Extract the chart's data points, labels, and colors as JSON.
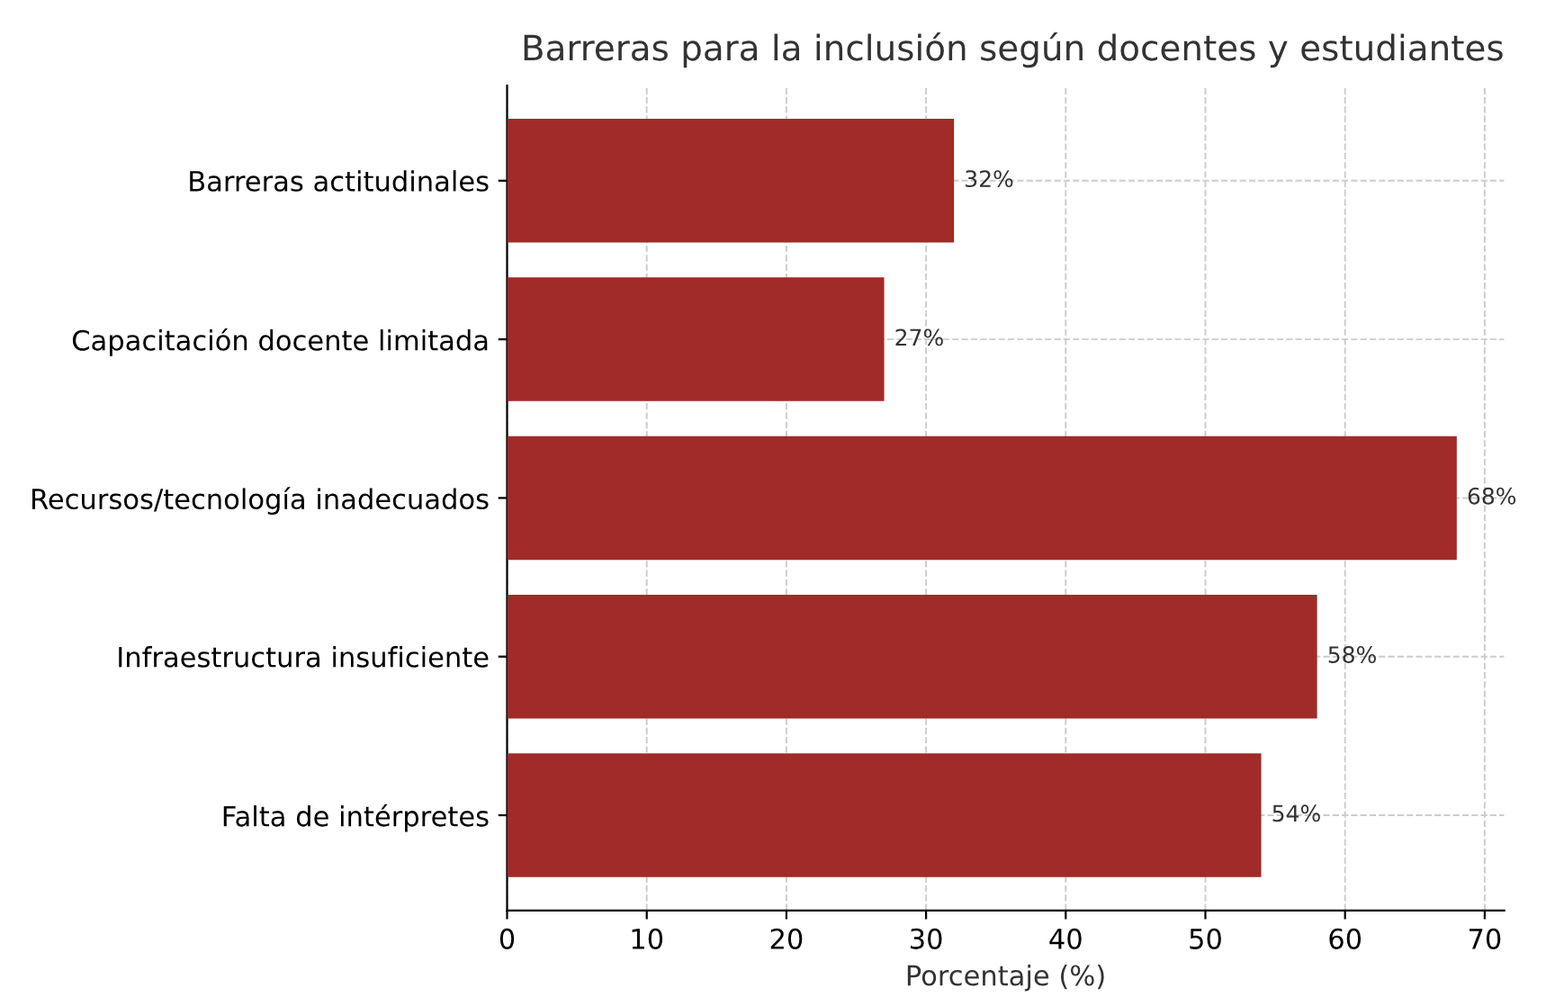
{
  "chart_data": {
    "type": "bar",
    "orientation": "horizontal",
    "title": "Barreras para la inclusión según docentes y estudiantes",
    "xlabel": "Porcentaje (%)",
    "categories": [
      "Barreras actitudinales",
      "Capacitación docente limitada",
      "Recursos/tecnología inadecuados",
      "Infraestructura insuficiente",
      "Falta de intérpretes"
    ],
    "values": [
      32,
      27,
      68,
      58,
      54
    ],
    "value_labels": [
      "32%",
      "27%",
      "68%",
      "58%",
      "54%"
    ],
    "color": "#a02b28",
    "xlim": [
      0,
      71.4
    ],
    "xticks": [
      0,
      10,
      20,
      30,
      40,
      50,
      60,
      70
    ],
    "grid": true,
    "line_style": "dashed"
  }
}
